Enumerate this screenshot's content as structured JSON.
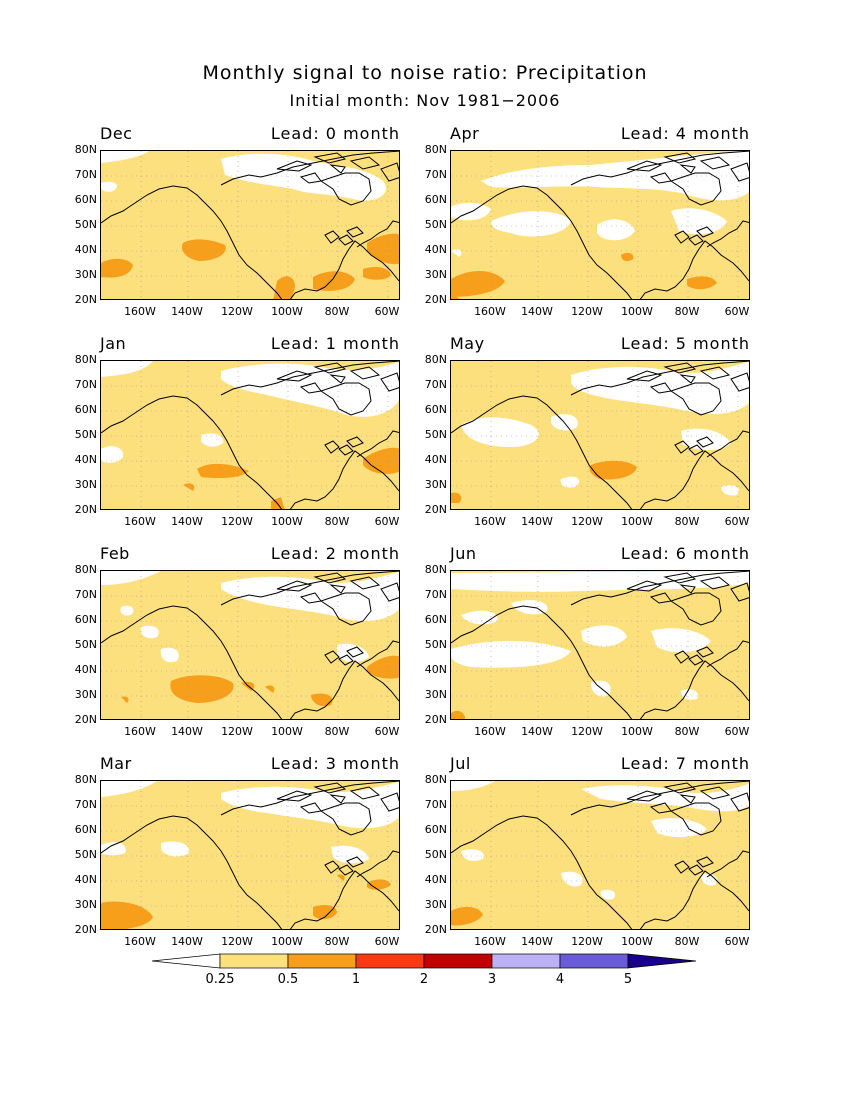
{
  "title": "Monthly signal to noise ratio: Precipitation",
  "subtitle": "Initial month: Nov 1981−2006",
  "lead_prefix": "Lead:",
  "lead_suffix": "month",
  "lat_labels": [
    "80N",
    "70N",
    "60N",
    "50N",
    "40N",
    "30N",
    "20N"
  ],
  "lon_labels": [
    "160W",
    "140W",
    "120W",
    "100W",
    "80W",
    "60W"
  ],
  "panels": [
    {
      "month": "Dec",
      "lead": "0"
    },
    {
      "month": "Apr",
      "lead": "4"
    },
    {
      "month": "Jan",
      "lead": "1"
    },
    {
      "month": "May",
      "lead": "5"
    },
    {
      "month": "Feb",
      "lead": "2"
    },
    {
      "month": "Jun",
      "lead": "6"
    },
    {
      "month": "Mar",
      "lead": "3"
    },
    {
      "month": "Jul",
      "lead": "7"
    }
  ],
  "colorbar": {
    "labels": [
      "0.25",
      "0.5",
      "1",
      "2",
      "3",
      "4",
      "5"
    ],
    "colors": [
      "#ffffff",
      "#fde07e",
      "#f79f1b",
      "#fb3a14",
      "#c20000",
      "#bcb1f5",
      "#6a5bd7",
      "#1a0088"
    ]
  }
}
